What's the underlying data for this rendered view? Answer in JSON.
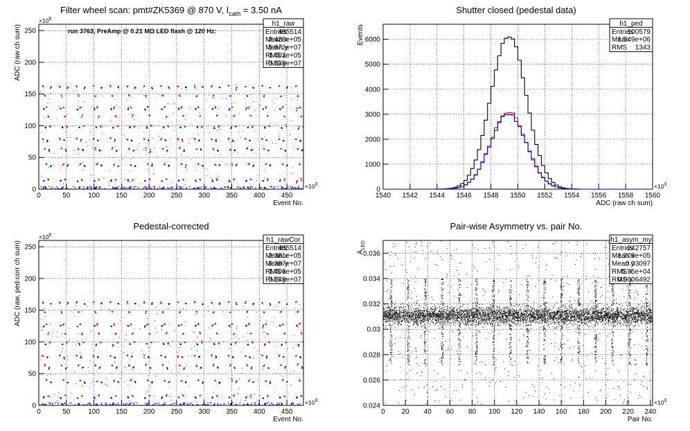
{
  "chart_data": [
    {
      "type": "scatter",
      "title": "Filter wheel scan: pmt#ZK5369 @   870 V, I",
      "title_sub": "cath",
      "title_tail": " = 3.50 nA",
      "xlabel": "Event No.",
      "ylabel": "ADC (raw ch sum)",
      "x_exp": "×10",
      "x_exp_power": "3",
      "y_exp": "×10",
      "y_exp_power": "6",
      "xlim": [
        0,
        480
      ],
      "ylim": [
        0,
        260
      ],
      "xticks": [
        "0",
        "50",
        "100",
        "150",
        "200",
        "250",
        "300",
        "350",
        "400",
        "450"
      ],
      "yticks": [
        "0",
        "50",
        "100",
        "150",
        "200",
        "250"
      ],
      "grid": true,
      "annotation": "run 3763, PreAmp @ 0.21 MΩ LED flash @  120 Hz:",
      "stats_box": {
        "name": "h1_raw",
        "rows": [
          [
            "Entries",
            "485514"
          ],
          [
            "Mean x",
            "2.428e+05"
          ],
          [
            "Mean y",
            "5.872e+07"
          ],
          [
            "RMS x",
            "1.402e+05"
          ],
          [
            "RMS y",
            "5.338e+07"
          ]
        ]
      },
      "levels": [
        {
          "y": 163,
          "color": "#ee0000"
        },
        {
          "y": 148,
          "color": "#ee0000"
        },
        {
          "y": 130,
          "color": "#ee0000"
        },
        {
          "y": 116,
          "color": "#ee0000"
        },
        {
          "y": 100,
          "color": "#ee0000"
        },
        {
          "y": 80,
          "color": "#ee0000"
        },
        {
          "y": 64,
          "color": "#ee0000"
        },
        {
          "y": 40,
          "color": "#ee0000"
        },
        {
          "y": 16,
          "color": "#ee0000"
        },
        {
          "y": 161,
          "color": "#0000cc"
        },
        {
          "y": 127,
          "color": "#0000cc"
        },
        {
          "y": 98,
          "color": "#0000cc"
        },
        {
          "y": 78,
          "color": "#0000cc"
        },
        {
          "y": 62,
          "color": "#0000cc"
        },
        {
          "y": 38,
          "color": "#0000cc"
        },
        {
          "y": 14,
          "color": "#0000cc"
        },
        {
          "y": 3,
          "color": "#0000cc"
        }
      ],
      "cycle_period": 30.6
    },
    {
      "type": "histogram",
      "title": "Shutter closed (pedestal data)",
      "xlabel": "ADC (raw ch sum)",
      "ylabel": "Events",
      "x_exp": "×10",
      "x_exp_power": "3",
      "xlim": [
        1540,
        1560
      ],
      "ylim": [
        0,
        6600
      ],
      "xticks": [
        "1540",
        "1542",
        "1544",
        "1546",
        "1548",
        "1550",
        "1552",
        "1554",
        "1556",
        "1558",
        "1560"
      ],
      "yticks": [
        "0",
        "1000",
        "2000",
        "3000",
        "4000",
        "5000",
        "6000"
      ],
      "grid": true,
      "stats_box": {
        "name": "h1_ped",
        "rows": [
          [
            "Entries",
            "100579"
          ],
          [
            "Mean",
            "1.549e+06"
          ],
          [
            "RMS",
            "1343"
          ]
        ]
      },
      "series": [
        {
          "color": "#000000",
          "mean": 1549.3,
          "sigma": 1.33,
          "peak": 6150
        },
        {
          "color": "#ee0000",
          "mean": 1549.3,
          "sigma": 1.33,
          "peak": 3100
        },
        {
          "color": "#0000cc",
          "mean": 1549.3,
          "sigma": 1.33,
          "peak": 3020
        }
      ]
    },
    {
      "type": "scatter",
      "title": "Pedestal-corrected",
      "xlabel": "Event No.",
      "ylabel": "ADC (raw, ped-corr ch sum)",
      "x_exp": "×10",
      "x_exp_power": "3",
      "y_exp": "×10",
      "y_exp_power": "6",
      "xlim": [
        0,
        480
      ],
      "ylim": [
        0,
        260
      ],
      "xticks": [
        "0",
        "50",
        "100",
        "150",
        "200",
        "250",
        "300",
        "350",
        "400",
        "450"
      ],
      "yticks": [
        "0",
        "50",
        "100",
        "150",
        "200",
        "250"
      ],
      "grid": true,
      "stats_box": {
        "name": "h1_rawCor",
        "rows": [
          [
            "Entries",
            "485514"
          ],
          [
            "Mean x",
            "2.381e+05"
          ],
          [
            "Mean y",
            "6.397e+07"
          ],
          [
            "RMS x",
            "1.406e+05"
          ],
          [
            "RMS y",
            "5.248e+07"
          ]
        ]
      },
      "levels": [
        {
          "y": 163,
          "color": "#ee0000"
        },
        {
          "y": 148,
          "color": "#ee0000"
        },
        {
          "y": 129,
          "color": "#ee0000"
        },
        {
          "y": 114,
          "color": "#ee0000"
        },
        {
          "y": 100,
          "color": "#ee0000"
        },
        {
          "y": 79,
          "color": "#ee0000"
        },
        {
          "y": 64,
          "color": "#ee0000"
        },
        {
          "y": 40,
          "color": "#ee0000"
        },
        {
          "y": 16,
          "color": "#ee0000"
        },
        {
          "y": 161,
          "color": "#0000cc"
        },
        {
          "y": 126,
          "color": "#0000cc"
        },
        {
          "y": 97,
          "color": "#0000cc"
        },
        {
          "y": 77,
          "color": "#0000cc"
        },
        {
          "y": 60,
          "color": "#0000cc"
        },
        {
          "y": 37,
          "color": "#0000cc"
        },
        {
          "y": 13,
          "color": "#0000cc"
        },
        {
          "y": 2,
          "color": "#0000cc"
        }
      ],
      "cycle_period": 30.6
    },
    {
      "type": "scatter",
      "title": "Pair-wise Asymmetry vs. pair No.",
      "xlabel": "Pair No.",
      "ylabel": "A",
      "ylabel_sub": "LED",
      "x_exp": "×10",
      "x_exp_power": "3",
      "xlim": [
        0,
        242
      ],
      "ylim": [
        0.024,
        0.037
      ],
      "xticks": [
        "0",
        "20",
        "40",
        "60",
        "80",
        "100",
        "120",
        "140",
        "160",
        "180",
        "200",
        "220",
        "240"
      ],
      "yticks": [
        "0.024",
        "0.026",
        "0.028",
        "0.03",
        "0.032",
        "0.034",
        "0.036"
      ],
      "grid": true,
      "stats_box": {
        "name": "h1_asym_my",
        "rows": [
          [
            "Entries",
            "242757"
          ],
          [
            "Mean x",
            "1.209e+05"
          ],
          [
            "Mean y",
            "0.03097"
          ],
          [
            "RMS x",
            "6.95e+04"
          ],
          [
            "RMS y",
            "0.0006492"
          ]
        ]
      },
      "band_center": 0.0311,
      "band_halfwidth": 0.0007,
      "spike_period": 15.3
    }
  ]
}
